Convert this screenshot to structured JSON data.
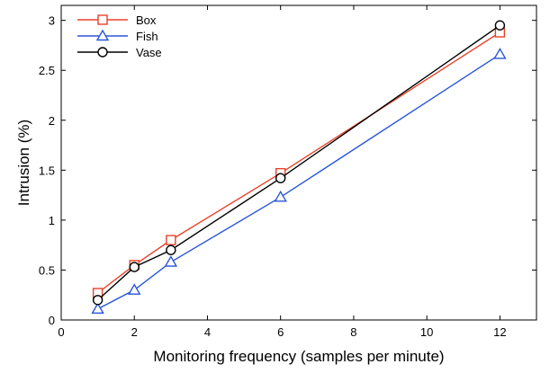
{
  "chart_data": {
    "type": "line",
    "title": "",
    "xlabel": "Monitoring frequency (samples per minute)",
    "ylabel": "Intrusion (%)",
    "xlim": [
      0,
      13
    ],
    "ylim": [
      0,
      3.15
    ],
    "x_ticks": [
      0,
      2,
      4,
      6,
      8,
      10,
      12
    ],
    "x_tick_labels": [
      "0",
      "2",
      "4",
      "6",
      "8",
      "10",
      "12"
    ],
    "y_ticks": [
      0,
      0.5,
      1,
      1.5,
      2,
      2.5,
      3
    ],
    "y_tick_labels": [
      "0",
      "0.5",
      "1",
      "1.5",
      "2",
      "2.5",
      "3"
    ],
    "x": [
      1,
      2,
      3,
      6,
      12
    ],
    "grid": false,
    "legend_position": "top-left",
    "series": [
      {
        "name": "Box",
        "marker": "square",
        "color": "#e8422a",
        "values": [
          0.27,
          0.55,
          0.8,
          1.47,
          2.88
        ]
      },
      {
        "name": "Fish",
        "marker": "triangle",
        "color": "#2a55d8",
        "values": [
          0.11,
          0.3,
          0.58,
          1.23,
          2.66
        ]
      },
      {
        "name": "Vase",
        "marker": "circle",
        "color": "#000000",
        "values": [
          0.2,
          0.53,
          0.7,
          1.42,
          2.95
        ]
      }
    ]
  }
}
